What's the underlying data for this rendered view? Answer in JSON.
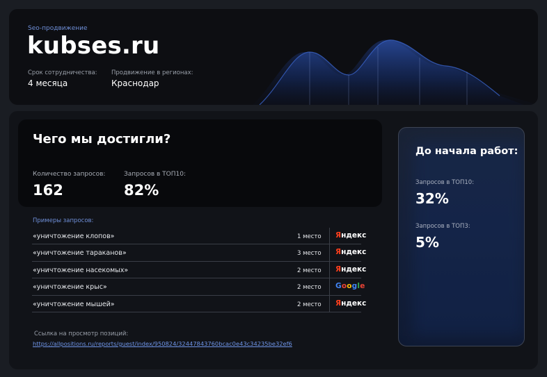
{
  "header": {
    "eyebrow": "Seo-продвижение",
    "domain": "kubses.ru",
    "term_label": "Срок сотрудничества:",
    "term_value": "4 месяца",
    "region_label": "Продвижение в регионах:",
    "region_value": "Краснодар"
  },
  "achievements": {
    "title": "Чего мы достигли?",
    "queries_label": "Количество запросов:",
    "queries_value": "162",
    "top10_label": "Запросов в ТОП10:",
    "top10_value": "82%"
  },
  "examples": {
    "label": "Примеры запросов:",
    "rows": [
      {
        "query": "«уничтожение клопов»",
        "position": "1 место",
        "engine": "yandex"
      },
      {
        "query": "«уничтожение тараканов»",
        "position": "3 место",
        "engine": "yandex"
      },
      {
        "query": "«уничтожение насекомых»",
        "position": "2 место",
        "engine": "yandex"
      },
      {
        "query": "«уничтожение крыс»",
        "position": "2 место",
        "engine": "google"
      },
      {
        "query": "«уничтожение мышей»",
        "position": "2 место",
        "engine": "yandex"
      }
    ],
    "yandex_first": "Я",
    "yandex_rest": "ндекс",
    "google_text": "Google",
    "google_colors": [
      "#4285f4",
      "#ea4335",
      "#fbbc05",
      "#4285f4",
      "#34a853",
      "#ea4335"
    ]
  },
  "report": {
    "label": "Ссылка на просмотр позиций:",
    "url": "https://allpositions.ru/reports/guest/index/950824/32447843760bcac0e43c34235be32ef6"
  },
  "before": {
    "title": "До начала работ:",
    "top10_label": "Запросов в ТОП10:",
    "top10_value": "32%",
    "top3_label": "Запросов в ТОП3:",
    "top3_value": "5%"
  },
  "colors": {
    "accent": "#6f8fd8",
    "yandex_red": "#fc3f1d"
  }
}
